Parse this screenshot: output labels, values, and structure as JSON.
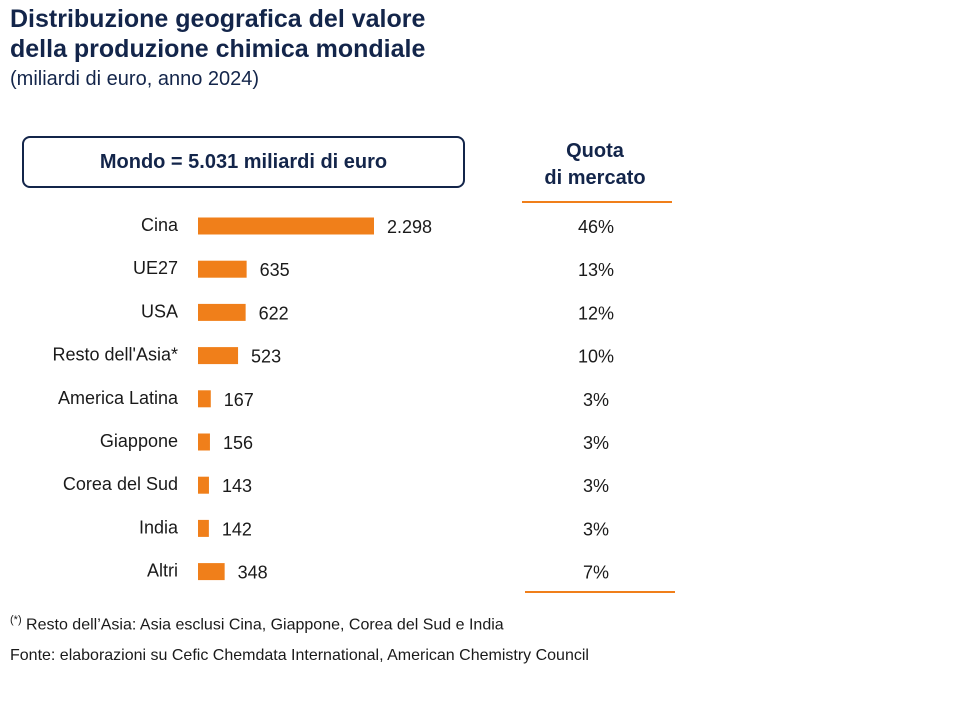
{
  "header": {
    "title_line1": "Distribuzione geografica del valore",
    "title_line2": "della produzione chimica mondiale",
    "subtitle": "(miliardi di euro, anno 2024)"
  },
  "total_label": "Mondo = 5.031 miliardi di euro",
  "share_header": {
    "line1": "Quota",
    "line2": "di mercato"
  },
  "chart_data": {
    "type": "bar",
    "orientation": "horizontal",
    "title": "Distribuzione geografica del valore della produzione chimica mondiale",
    "subtitle": "(miliardi di euro, anno 2024)",
    "unit": "miliardi di euro",
    "categories": [
      "Cina",
      "UE27",
      "USA",
      "Resto dell'Asia*",
      "America Latina",
      "Giappone",
      "Corea del Sud",
      "India",
      "Altri"
    ],
    "values": [
      2298,
      635,
      622,
      523,
      167,
      156,
      143,
      142,
      348
    ],
    "value_labels": [
      "2.298",
      "635",
      "622",
      "523",
      "167",
      "156",
      "143",
      "142",
      "348"
    ],
    "market_share": [
      "46%",
      "13%",
      "12%",
      "10%",
      "3%",
      "3%",
      "3%",
      "3%",
      "7%"
    ],
    "xlim": [
      0,
      2298
    ],
    "bar_color": "#f07f1a",
    "legend": "none",
    "grid": false
  },
  "footnote": {
    "marker": "(*)",
    "text": " Resto dell’Asia: Asia esclusi Cina, Giappone, Corea del Sud e India"
  },
  "source": "Fonte: elaborazioni su Cefic Chemdata International, American Chemistry Council",
  "colors": {
    "accent": "#f07f1a",
    "navy": "#13254a"
  }
}
